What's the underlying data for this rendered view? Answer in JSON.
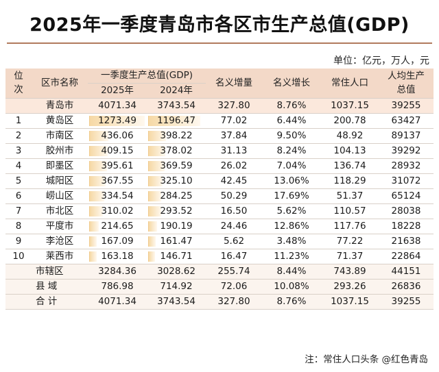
{
  "title": "2025年一季度青岛市各区市生产总值(GDP)",
  "unit": "单位：亿元，万人，元",
  "headers": {
    "rank": "位次",
    "name": "区市名称",
    "gdp_group": "一季度生产总值(GDP)",
    "y2025": "2025年",
    "y2024": "2024年",
    "increase": "名义增量",
    "growth": "名义增长",
    "population": "常住人口",
    "per_capita": "人均生产总值"
  },
  "total_row": {
    "name": "青岛市",
    "y2025": "4071.34",
    "y2024": "3743.54",
    "increase": "327.80",
    "growth": "8.76%",
    "population": "1037.15",
    "per_capita": "39255"
  },
  "rows": [
    {
      "rank": "1",
      "name": "黄岛区",
      "y2025": "1273.49",
      "y2024": "1196.47",
      "increase": "77.02",
      "growth": "6.44%",
      "population": "200.78",
      "per_capita": "63427"
    },
    {
      "rank": "2",
      "name": "市南区",
      "y2025": "436.06",
      "y2024": "398.22",
      "increase": "37.84",
      "growth": "9.50%",
      "population": "48.92",
      "per_capita": "89137"
    },
    {
      "rank": "3",
      "name": "胶州市",
      "y2025": "409.15",
      "y2024": "378.02",
      "increase": "31.13",
      "growth": "8.24%",
      "population": "104.13",
      "per_capita": "39292"
    },
    {
      "rank": "4",
      "name": "即墨区",
      "y2025": "395.61",
      "y2024": "369.59",
      "increase": "26.02",
      "growth": "7.04%",
      "population": "136.74",
      "per_capita": "28932"
    },
    {
      "rank": "5",
      "name": "城阳区",
      "y2025": "367.55",
      "y2024": "325.10",
      "increase": "42.45",
      "growth": "13.06%",
      "population": "118.29",
      "per_capita": "31072"
    },
    {
      "rank": "6",
      "name": "崂山区",
      "y2025": "334.54",
      "y2024": "284.25",
      "increase": "50.29",
      "growth": "17.69%",
      "population": "51.37",
      "per_capita": "65124"
    },
    {
      "rank": "7",
      "name": "市北区",
      "y2025": "310.02",
      "y2024": "293.52",
      "increase": "16.50",
      "growth": "5.62%",
      "population": "110.57",
      "per_capita": "28038"
    },
    {
      "rank": "8",
      "name": "平度市",
      "y2025": "214.65",
      "y2024": "190.19",
      "increase": "24.46",
      "growth": "12.86%",
      "population": "117.76",
      "per_capita": "18228"
    },
    {
      "rank": "9",
      "name": "李沧区",
      "y2025": "167.09",
      "y2024": "161.47",
      "increase": "5.62",
      "growth": "3.48%",
      "population": "77.22",
      "per_capita": "21638"
    },
    {
      "rank": "10",
      "name": "莱西市",
      "y2025": "163.18",
      "y2024": "146.71",
      "increase": "16.47",
      "growth": "11.23%",
      "population": "71.37",
      "per_capita": "22864"
    }
  ],
  "summary_rows": [
    {
      "name": "市辖区",
      "y2025": "3284.36",
      "y2024": "3028.62",
      "increase": "255.74",
      "growth": "8.44%",
      "population": "743.89",
      "per_capita": "44151"
    },
    {
      "name": "县  域",
      "y2025": "786.98",
      "y2024": "714.92",
      "increase": "72.06",
      "growth": "10.08%",
      "population": "293.26",
      "per_capita": "26836"
    },
    {
      "name": "合  计",
      "y2025": "4071.34",
      "y2024": "3743.54",
      "increase": "327.80",
      "growth": "8.76%",
      "population": "1037.15",
      "per_capita": "39255"
    }
  ],
  "footnote": "注：常住人口头条 @红色青岛",
  "bar_scale_max": 1273.49
}
